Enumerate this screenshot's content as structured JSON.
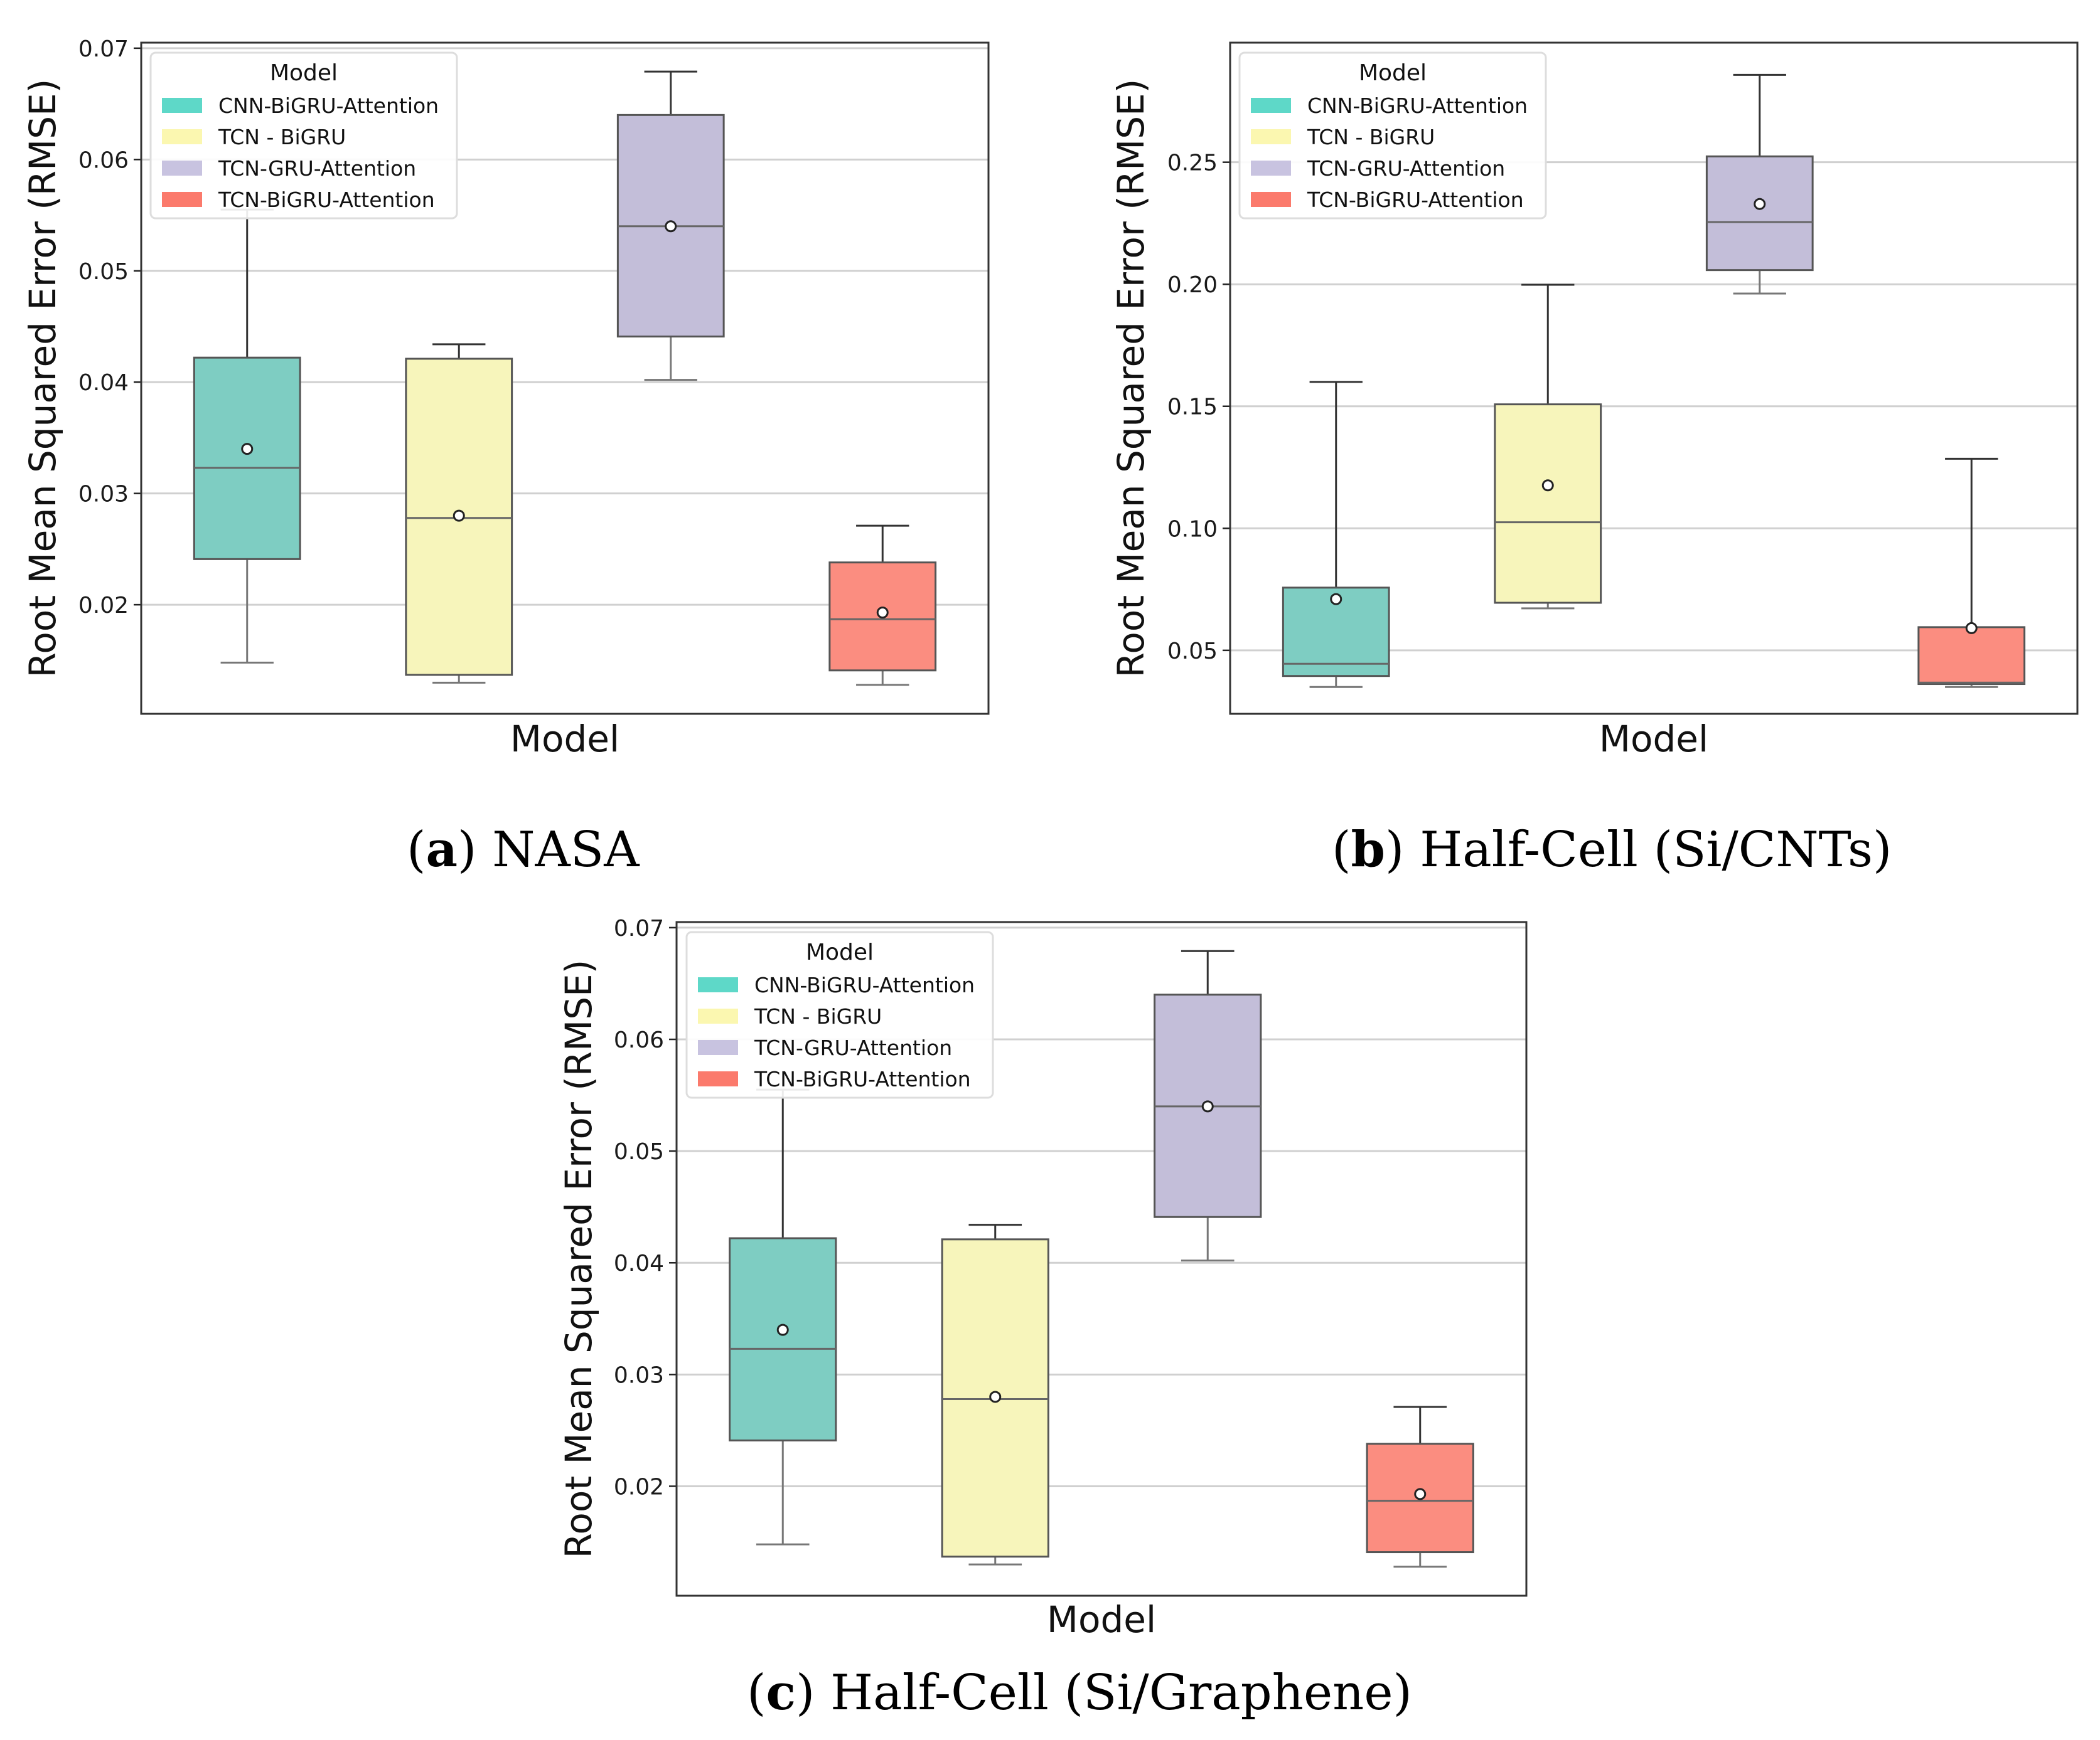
{
  "legend_title": "Model",
  "colors": {
    "CNN-BiGRU-Attention": "#7ecdc2",
    "TCN - BiGRU": "#f7f5bb",
    "TCN-GRU-Attention": "#c3bed9",
    "TCN-BiGRU-Attention": "#fb8d80"
  },
  "legend_colors": [
    "#5ed8c8",
    "#fbf7b0",
    "#c8c3e0",
    "#fb7a6c"
  ],
  "chart_data": [
    {
      "type": "box",
      "caption_letter": "a",
      "caption_text": "NASA",
      "xlabel": "Model",
      "ylabel": "Root Mean Squared Error (RMSE)",
      "ylim": [
        0.0102,
        0.0705
      ],
      "yticks": [
        0.02,
        0.03,
        0.04,
        0.05,
        0.06,
        0.07
      ],
      "ytick_labels": [
        "0.02",
        "0.03",
        "0.04",
        "0.05",
        "0.06",
        "0.07"
      ],
      "legend": {
        "title": "Model",
        "entries": [
          "CNN-BiGRU-Attention",
          "TCN - BiGRU",
          "TCN-GRU-Attention",
          "TCN-BiGRU-Attention"
        ]
      },
      "boxes": [
        {
          "name": "CNN-BiGRU-Attention",
          "whislo": 0.0148,
          "q1": 0.0241,
          "median": 0.0323,
          "q3": 0.0422,
          "whishi": 0.0555,
          "mean": 0.034
        },
        {
          "name": "TCN - BiGRU",
          "whislo": 0.013,
          "q1": 0.0137,
          "median": 0.0278,
          "q3": 0.0421,
          "whishi": 0.0434,
          "mean": 0.028
        },
        {
          "name": "TCN-GRU-Attention",
          "whislo": 0.0402,
          "q1": 0.0441,
          "median": 0.054,
          "q3": 0.064,
          "whishi": 0.0679,
          "mean": 0.054
        },
        {
          "name": "TCN-BiGRU-Attention",
          "whislo": 0.0128,
          "q1": 0.0141,
          "median": 0.0187,
          "q3": 0.0238,
          "whishi": 0.0271,
          "mean": 0.0193
        }
      ]
    },
    {
      "type": "box",
      "caption_letter": "b",
      "caption_text": "Half-Cell (Si/CNTs)",
      "xlabel": "Model",
      "ylabel": "Root Mean Squared Error (RMSE)",
      "ylim": [
        0.024,
        0.299
      ],
      "yticks": [
        0.05,
        0.1,
        0.15,
        0.2,
        0.25
      ],
      "ytick_labels": [
        "0.05",
        "0.10",
        "0.15",
        "0.20",
        "0.25"
      ],
      "legend": {
        "title": "Model",
        "entries": [
          "CNN-BiGRU-Attention",
          "TCN - BiGRU",
          "TCN-GRU-Attention",
          "TCN-BiGRU-Attention"
        ]
      },
      "boxes": [
        {
          "name": "CNN-BiGRU-Attention",
          "whislo": 0.035,
          "q1": 0.0395,
          "median": 0.0445,
          "q3": 0.0757,
          "whishi": 0.16,
          "mean": 0.071
        },
        {
          "name": "TCN - BiGRU",
          "whislo": 0.0672,
          "q1": 0.0695,
          "median": 0.1025,
          "q3": 0.1508,
          "whishi": 0.1998,
          "mean": 0.1176
        },
        {
          "name": "TCN-GRU-Attention",
          "whislo": 0.1962,
          "q1": 0.2058,
          "median": 0.2255,
          "q3": 0.2524,
          "whishi": 0.2858,
          "mean": 0.2329
        },
        {
          "name": "TCN-BiGRU-Attention",
          "whislo": 0.035,
          "q1": 0.0362,
          "median": 0.0368,
          "q3": 0.0595,
          "whishi": 0.1285,
          "mean": 0.0591
        }
      ]
    },
    {
      "type": "box",
      "caption_letter": "c",
      "caption_text": "Half-Cell (Si/Graphene)",
      "xlabel": "Model",
      "ylabel": "Root Mean Squared Error (RMSE)",
      "ylim": [
        0.0102,
        0.0705
      ],
      "yticks": [
        0.02,
        0.03,
        0.04,
        0.05,
        0.06,
        0.07
      ],
      "ytick_labels": [
        "0.02",
        "0.03",
        "0.04",
        "0.05",
        "0.06",
        "0.07"
      ],
      "legend": {
        "title": "Model",
        "entries": [
          "CNN-BiGRU-Attention",
          "TCN - BiGRU",
          "TCN-GRU-Attention",
          "TCN-BiGRU-Attention"
        ]
      },
      "boxes": [
        {
          "name": "CNN-BiGRU-Attention",
          "whislo": 0.0148,
          "q1": 0.0241,
          "median": 0.0323,
          "q3": 0.0422,
          "whishi": 0.0555,
          "mean": 0.034
        },
        {
          "name": "TCN - BiGRU",
          "whislo": 0.013,
          "q1": 0.0137,
          "median": 0.0278,
          "q3": 0.0421,
          "whishi": 0.0434,
          "mean": 0.028
        },
        {
          "name": "TCN-GRU-Attention",
          "whislo": 0.0402,
          "q1": 0.0441,
          "median": 0.054,
          "q3": 0.064,
          "whishi": 0.0679,
          "mean": 0.054
        },
        {
          "name": "TCN-BiGRU-Attention",
          "whislo": 0.0128,
          "q1": 0.0141,
          "median": 0.0187,
          "q3": 0.0238,
          "whishi": 0.0271,
          "mean": 0.0193
        }
      ]
    }
  ]
}
